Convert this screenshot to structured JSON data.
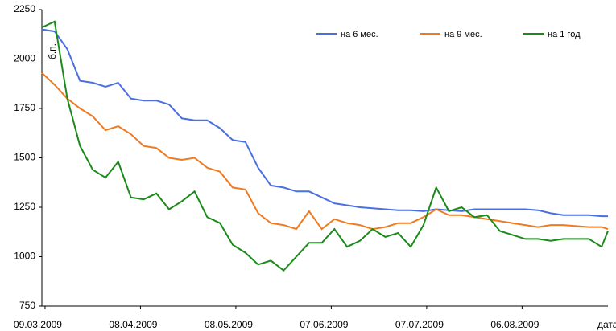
{
  "chart_data": {
    "type": "line",
    "y_label": "б.п.",
    "x_label": "дата",
    "x": [
      "08.03.2009",
      "12.03.2009",
      "16.03.2009",
      "20.03.2009",
      "24.03.2009",
      "28.03.2009",
      "01.04.2009",
      "05.04.2009",
      "09.04.2009",
      "13.04.2009",
      "17.04.2009",
      "21.04.2009",
      "25.04.2009",
      "29.04.2009",
      "03.05.2009",
      "07.05.2009",
      "11.05.2009",
      "15.05.2009",
      "19.05.2009",
      "23.05.2009",
      "27.05.2009",
      "31.05.2009",
      "04.06.2009",
      "08.06.2009",
      "12.06.2009",
      "16.06.2009",
      "20.06.2009",
      "24.06.2009",
      "28.06.2009",
      "02.07.2009",
      "06.07.2009",
      "10.07.2009",
      "14.07.2009",
      "18.07.2009",
      "22.07.2009",
      "26.07.2009",
      "30.07.2009",
      "03.08.2009",
      "07.08.2009",
      "11.08.2009",
      "15.08.2009",
      "19.08.2009",
      "23.08.2009",
      "27.08.2009",
      "31.08.2009",
      "02.09.2009"
    ],
    "series": [
      {
        "name": "на 6 мес.",
        "color": "#4a6fe0",
        "values": [
          2150,
          2140,
          2050,
          1890,
          1880,
          1860,
          1880,
          1800,
          1790,
          1790,
          1770,
          1700,
          1690,
          1690,
          1650,
          1590,
          1580,
          1450,
          1360,
          1350,
          1330,
          1330,
          1300,
          1270,
          1260,
          1250,
          1245,
          1240,
          1235,
          1235,
          1230,
          1240,
          1235,
          1230,
          1240,
          1240,
          1240,
          1240,
          1240,
          1235,
          1220,
          1210,
          1210,
          1210,
          1205,
          1205
        ]
      },
      {
        "name": "на 9 мес.",
        "color": "#f07a20",
        "values": [
          1930,
          1870,
          1800,
          1750,
          1710,
          1640,
          1660,
          1620,
          1560,
          1550,
          1500,
          1490,
          1500,
          1450,
          1430,
          1350,
          1340,
          1220,
          1170,
          1160,
          1140,
          1230,
          1140,
          1190,
          1170,
          1160,
          1140,
          1150,
          1170,
          1170,
          1200,
          1240,
          1210,
          1210,
          1200,
          1190,
          1180,
          1170,
          1160,
          1150,
          1160,
          1160,
          1155,
          1150,
          1150,
          1140
        ]
      },
      {
        "name": "на 1 год",
        "color": "#1a8a1a",
        "values": [
          2160,
          2190,
          1800,
          1560,
          1440,
          1400,
          1480,
          1300,
          1290,
          1320,
          1240,
          1280,
          1330,
          1200,
          1170,
          1060,
          1020,
          960,
          980,
          930,
          1000,
          1070,
          1070,
          1140,
          1050,
          1080,
          1140,
          1100,
          1120,
          1050,
          1160,
          1350,
          1230,
          1250,
          1200,
          1210,
          1130,
          1110,
          1090,
          1090,
          1080,
          1090,
          1090,
          1090,
          1050,
          1130
        ]
      }
    ],
    "xlim": [
      "08.03.2009",
      "02.09.2009"
    ],
    "xticks": [
      "09.03.2009",
      "08.04.2009",
      "08.05.2009",
      "07.06.2009",
      "07.07.2009",
      "06.08.2009"
    ],
    "ylim": [
      750,
      2250
    ],
    "yticks": [
      750,
      1000,
      1250,
      1500,
      1750,
      2000,
      2250
    ],
    "grid": false
  }
}
